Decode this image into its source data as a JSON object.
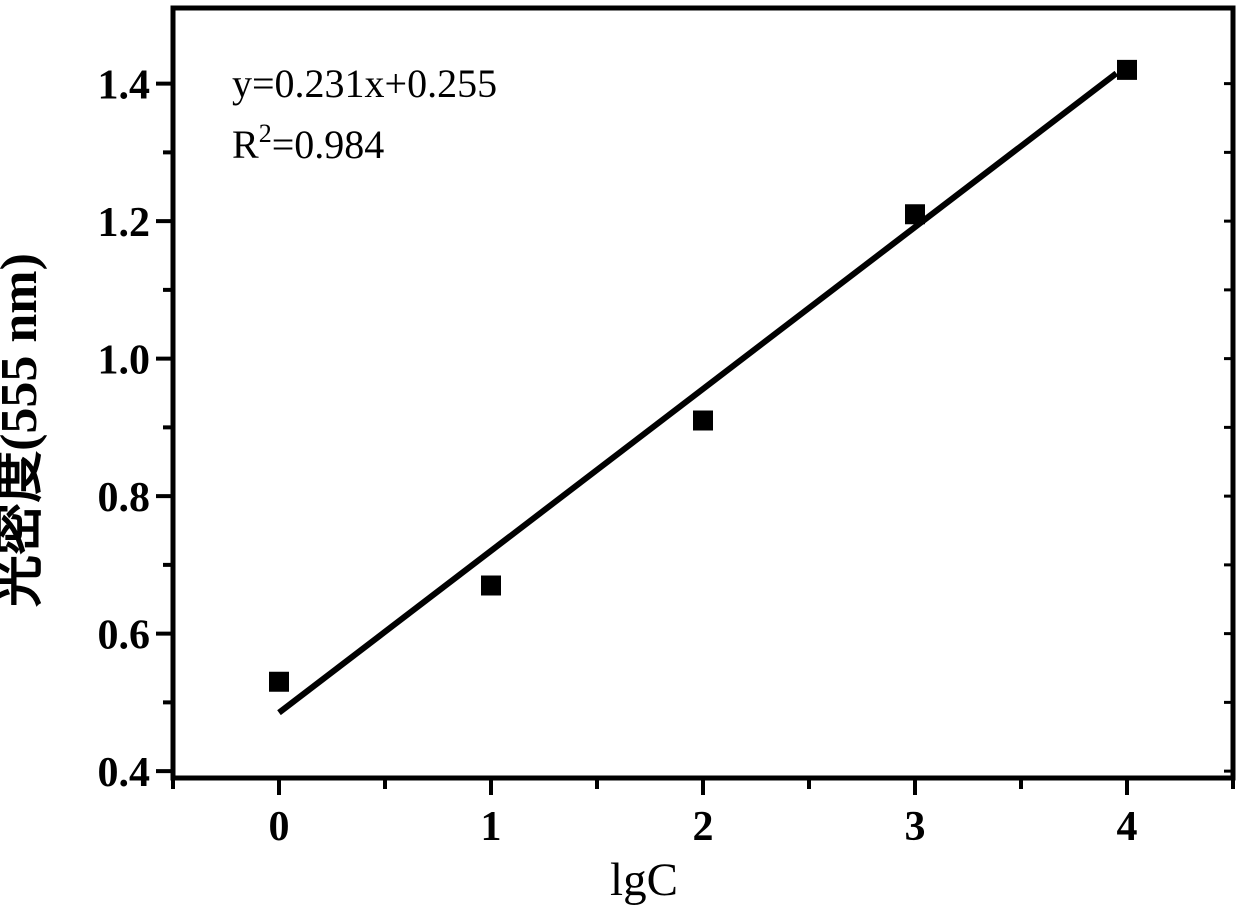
{
  "figure": {
    "background": "#ffffff"
  },
  "chart_data": {
    "type": "scatter",
    "x": [
      0,
      1,
      2,
      3,
      4
    ],
    "y": [
      0.53,
      0.67,
      0.91,
      1.21,
      1.42
    ],
    "fit_line": {
      "x1": 0.0,
      "y1": 0.485,
      "x2": 3.95,
      "y2": 1.415
    },
    "annotations": {
      "equation": "y=0.231x+0.255",
      "r_squared_base": "R",
      "r_squared_sup": "2",
      "r_squared_rest": "=0.984"
    },
    "xlabel": "lgC",
    "ylabel": "光密度(555 nm)",
    "xlim": [
      -0.5,
      4.5
    ],
    "ylim": [
      0.39,
      1.51
    ],
    "x_major_ticks": [
      0,
      1,
      2,
      3,
      4
    ],
    "x_tick_labels": [
      "0",
      "1",
      "2",
      "3",
      "4"
    ],
    "x_minor_ticks": [
      -0.5,
      0.5,
      1.5,
      2.5,
      3.5,
      4.5
    ],
    "y_major_ticks": [
      0.4,
      0.6,
      0.8,
      1.0,
      1.2,
      1.4
    ],
    "y_tick_labels": [
      "0.4",
      "0.6",
      "0.8",
      "1.0",
      "1.2",
      "1.4"
    ],
    "y_minor_ticks": [
      0.5,
      0.7,
      0.9,
      1.1,
      1.3
    ],
    "marker": "square",
    "marker_size_px": 20,
    "grid": false,
    "legend": "none",
    "colors": {
      "foreground": "#000000",
      "background": "#ffffff"
    }
  }
}
